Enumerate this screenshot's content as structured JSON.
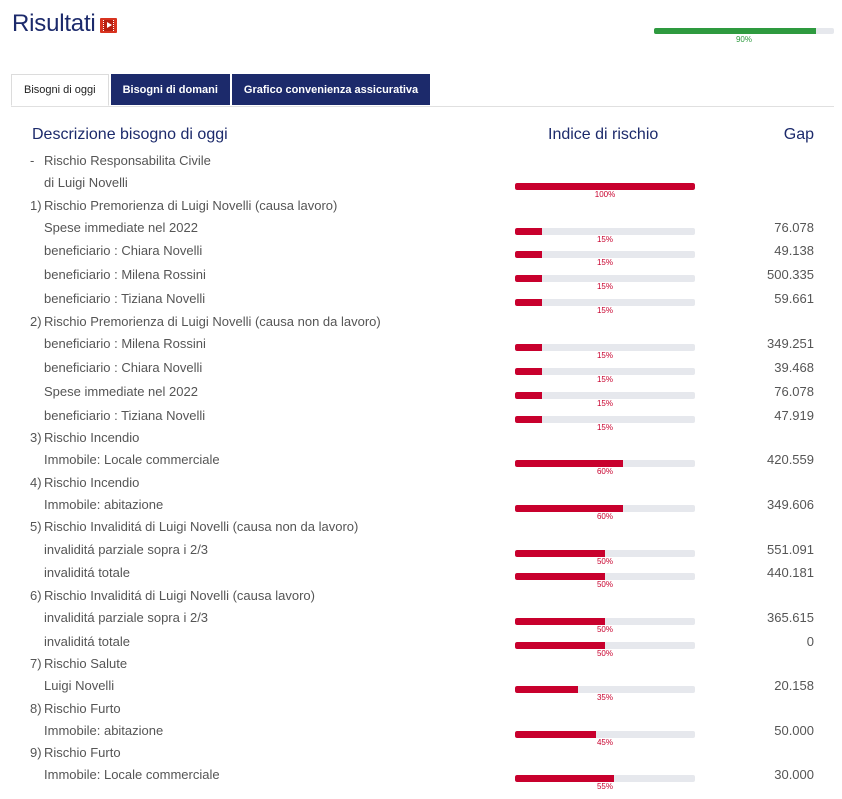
{
  "header": {
    "title": "Risultati",
    "icon": "video-icon",
    "progress": {
      "value": 90,
      "label": "90%",
      "color": "#2e9a3f"
    }
  },
  "tabs": [
    {
      "label": "Bisogni di oggi",
      "active": true
    },
    {
      "label": "Bisogni di domani",
      "active": false
    },
    {
      "label": "Grafico convenienza assicurativa",
      "active": false
    }
  ],
  "columns": {
    "description": "Descrizione bisogno di oggi",
    "risk_index": "Indice di rischio",
    "gap": "Gap"
  },
  "colors": {
    "brand": "#1c2a6b",
    "risk": "#c8002d",
    "track": "#e6e8ed"
  },
  "rows": [
    {
      "type": "group",
      "num": "-",
      "text": "Rischio Responsabilita Civile"
    },
    {
      "type": "item",
      "text": "di Luigi Novelli",
      "risk": 100,
      "risk_label": "100%",
      "gap": ""
    },
    {
      "type": "group",
      "num": "1)",
      "text": "Rischio Premorienza di Luigi Novelli (causa lavoro)"
    },
    {
      "type": "item",
      "text": "Spese immediate nel 2022",
      "risk": 15,
      "risk_label": "15%",
      "gap": "76.078"
    },
    {
      "type": "item",
      "text": "beneficiario : Chiara Novelli",
      "risk": 15,
      "risk_label": "15%",
      "gap": "49.138"
    },
    {
      "type": "item",
      "text": "beneficiario : Milena Rossini",
      "risk": 15,
      "risk_label": "15%",
      "gap": "500.335"
    },
    {
      "type": "item",
      "text": "beneficiario : Tiziana Novelli",
      "risk": 15,
      "risk_label": "15%",
      "gap": "59.661"
    },
    {
      "type": "group",
      "num": "2)",
      "text": "Rischio Premorienza di Luigi Novelli (causa non da lavoro)"
    },
    {
      "type": "item",
      "text": "beneficiario : Milena Rossini",
      "risk": 15,
      "risk_label": "15%",
      "gap": "349.251"
    },
    {
      "type": "item",
      "text": "beneficiario : Chiara Novelli",
      "risk": 15,
      "risk_label": "15%",
      "gap": "39.468"
    },
    {
      "type": "item",
      "text": "Spese immediate nel 2022",
      "risk": 15,
      "risk_label": "15%",
      "gap": "76.078"
    },
    {
      "type": "item",
      "text": "beneficiario : Tiziana Novelli",
      "risk": 15,
      "risk_label": "15%",
      "gap": "47.919"
    },
    {
      "type": "group",
      "num": "3)",
      "text": "Rischio Incendio"
    },
    {
      "type": "item",
      "text": "Immobile: Locale commerciale",
      "risk": 60,
      "risk_label": "60%",
      "gap": "420.559"
    },
    {
      "type": "group",
      "num": "4)",
      "text": "Rischio Incendio"
    },
    {
      "type": "item",
      "text": "Immobile: abitazione",
      "risk": 60,
      "risk_label": "60%",
      "gap": "349.606"
    },
    {
      "type": "group",
      "num": "5)",
      "text": "Rischio Invaliditá di Luigi Novelli (causa non da lavoro)"
    },
    {
      "type": "item",
      "text": "invaliditá parziale sopra i 2/3",
      "risk": 50,
      "risk_label": "50%",
      "gap": "551.091"
    },
    {
      "type": "item",
      "text": "invaliditá totale",
      "risk": 50,
      "risk_label": "50%",
      "gap": "440.181"
    },
    {
      "type": "group",
      "num": "6)",
      "text": "Rischio Invaliditá di Luigi Novelli (causa lavoro)"
    },
    {
      "type": "item",
      "text": "invaliditá parziale sopra i 2/3",
      "risk": 50,
      "risk_label": "50%",
      "gap": "365.615"
    },
    {
      "type": "item",
      "text": "invaliditá totale",
      "risk": 50,
      "risk_label": "50%",
      "gap": "0"
    },
    {
      "type": "group",
      "num": "7)",
      "text": "Rischio Salute"
    },
    {
      "type": "item",
      "text": "Luigi Novelli",
      "risk": 35,
      "risk_label": "35%",
      "gap": "20.158"
    },
    {
      "type": "group",
      "num": "8)",
      "text": "Rischio Furto"
    },
    {
      "type": "item",
      "text": "Immobile: abitazione",
      "risk": 45,
      "risk_label": "45%",
      "gap": "50.000"
    },
    {
      "type": "group",
      "num": "9)",
      "text": "Rischio Furto"
    },
    {
      "type": "item",
      "text": "Immobile: Locale commerciale",
      "risk": 55,
      "risk_label": "55%",
      "gap": "30.000"
    }
  ]
}
